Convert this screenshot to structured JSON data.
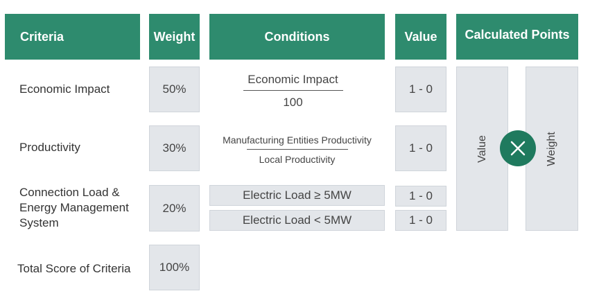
{
  "headers": {
    "criteria": "Criteria",
    "weight": "Weight",
    "conditions": "Conditions",
    "value": "Value",
    "calculated_points": "Calculated Points"
  },
  "rows": [
    {
      "criteria": "Economic Impact",
      "weight": "50%",
      "condition_numerator": "Economic Impact",
      "condition_denominator": "100",
      "value": "1 - 0"
    },
    {
      "criteria": "Productivity",
      "weight": "30%",
      "condition_numerator": "Manufacturing Entities Productivity",
      "condition_denominator": "Local Productivity",
      "value": "1 - 0"
    },
    {
      "criteria": "Connection Load & Energy Management System",
      "weight": "20%",
      "conditions": [
        "Electric Load ≥ 5MW",
        "Electric Load < 5MW"
      ],
      "values": [
        "1 - 0",
        "1 - 0"
      ]
    }
  ],
  "total": {
    "label": "Total Score of Criteria",
    "weight": "100%"
  },
  "calculated": {
    "left_label": "Value",
    "right_label": "Weight",
    "operator_icon": "multiply-icon"
  },
  "colors": {
    "header_green": "#2e8b6e",
    "operator_green": "#1f7a5e",
    "cell_gray": "#e3e6ea"
  }
}
